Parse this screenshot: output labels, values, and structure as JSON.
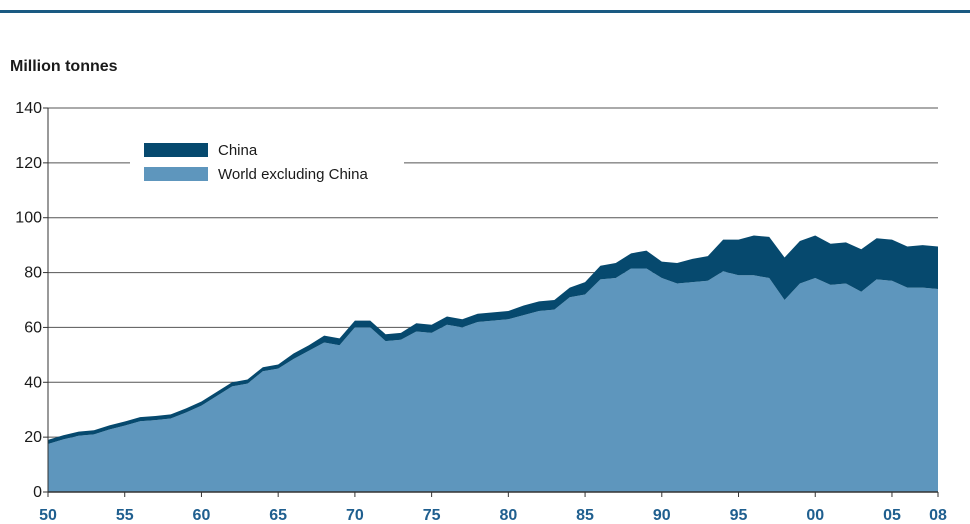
{
  "chart_data": {
    "type": "area",
    "ylabel": "Million tonnes",
    "ylim": [
      0,
      140
    ],
    "yticks": [
      0,
      20,
      40,
      60,
      80,
      100,
      120,
      140
    ],
    "xlim": [
      1950,
      2008
    ],
    "xticks": [
      {
        "year": 1950,
        "label": "50"
      },
      {
        "year": 1955,
        "label": "55"
      },
      {
        "year": 1960,
        "label": "60"
      },
      {
        "year": 1965,
        "label": "65"
      },
      {
        "year": 1970,
        "label": "70"
      },
      {
        "year": 1975,
        "label": "75"
      },
      {
        "year": 1980,
        "label": "80"
      },
      {
        "year": 1985,
        "label": "85"
      },
      {
        "year": 1990,
        "label": "90"
      },
      {
        "year": 1995,
        "label": "95"
      },
      {
        "year": 2000,
        "label": "00"
      },
      {
        "year": 2005,
        "label": "05"
      },
      {
        "year": 2008,
        "label": "08"
      }
    ],
    "grid": true,
    "stacked": true,
    "x": [
      1950,
      1951,
      1952,
      1953,
      1954,
      1955,
      1956,
      1957,
      1958,
      1959,
      1960,
      1961,
      1962,
      1963,
      1964,
      1965,
      1966,
      1967,
      1968,
      1969,
      1970,
      1971,
      1972,
      1973,
      1974,
      1975,
      1976,
      1977,
      1978,
      1979,
      1980,
      1981,
      1982,
      1983,
      1984,
      1985,
      1986,
      1987,
      1988,
      1989,
      1990,
      1991,
      1992,
      1993,
      1994,
      1995,
      1996,
      1997,
      1998,
      1999,
      2000,
      2001,
      2002,
      2003,
      2004,
      2005,
      2006,
      2007,
      2008
    ],
    "series": [
      {
        "name": "World excluding China",
        "color": "#5e96bd",
        "values": [
          17.5,
          19.2,
          20.5,
          21.0,
          22.8,
          24.2,
          25.8,
          26.2,
          26.8,
          29.0,
          31.5,
          35.0,
          38.5,
          39.5,
          44.0,
          45.0,
          48.5,
          51.5,
          54.5,
          53.5,
          60.0,
          60.0,
          55.0,
          55.5,
          58.5,
          58.0,
          61.0,
          60.0,
          62.0,
          62.5,
          63.0,
          64.5,
          66.0,
          66.5,
          71.0,
          72.0,
          77.5,
          78.0,
          81.5,
          81.5,
          78.0,
          76.0,
          76.5,
          77.0,
          80.5,
          79.0,
          79.0,
          78.0,
          70.0,
          76.0,
          78.0,
          75.5,
          76.0,
          73.0,
          77.5,
          77.0,
          74.5,
          74.5,
          74.0
        ]
      },
      {
        "name": "China",
        "color": "#06496e",
        "values": [
          1.5,
          1.5,
          1.5,
          1.5,
          1.5,
          1.5,
          1.5,
          1.5,
          1.5,
          1.5,
          1.5,
          1.5,
          1.5,
          1.5,
          1.5,
          1.5,
          2.0,
          2.0,
          2.5,
          2.5,
          2.5,
          2.5,
          2.5,
          2.5,
          3.0,
          3.0,
          3.0,
          3.0,
          3.0,
          3.0,
          3.0,
          3.5,
          3.5,
          3.5,
          3.5,
          4.5,
          5.0,
          5.5,
          5.5,
          6.5,
          6.0,
          7.5,
          8.5,
          9.0,
          11.5,
          13.0,
          14.5,
          15.0,
          15.5,
          15.5,
          15.5,
          15.0,
          15.0,
          15.5,
          15.0,
          15.0,
          15.0,
          15.5,
          15.5
        ]
      }
    ],
    "legend": {
      "position": "top-left",
      "entries": [
        {
          "label": "China",
          "color": "#06496e"
        },
        {
          "label": "World excluding China",
          "color": "#5e96bd"
        }
      ]
    }
  }
}
